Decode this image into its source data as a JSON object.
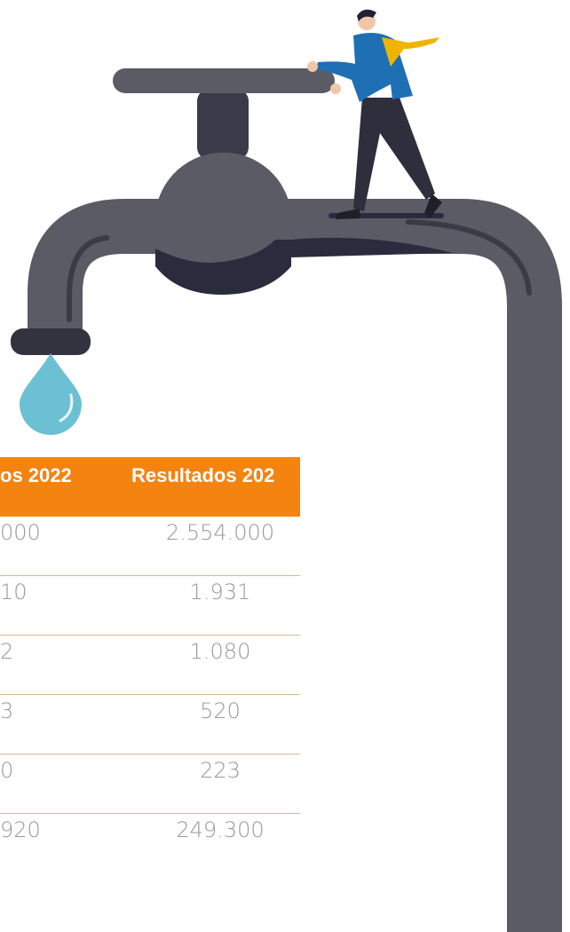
{
  "table": {
    "header": [
      "os 2022",
      "Resultados 202"
    ],
    "rows": [
      [
        "000",
        "2.554.000"
      ],
      [
        "10",
        "1.931"
      ],
      [
        "2",
        "1.080"
      ],
      [
        "3",
        "520"
      ],
      [
        "0",
        "223"
      ],
      [
        "920",
        "249.300"
      ]
    ]
  }
}
